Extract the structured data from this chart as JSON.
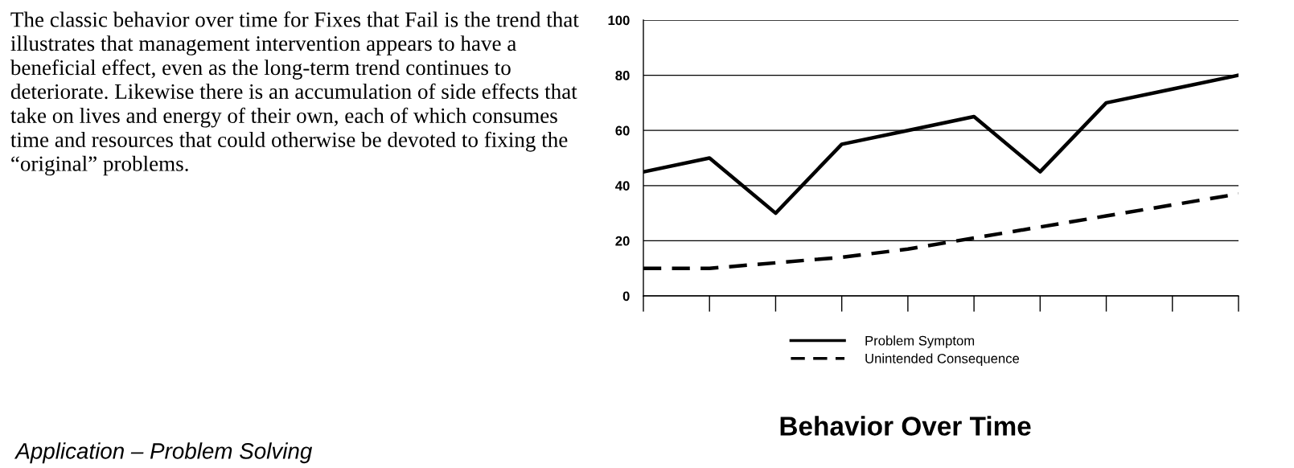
{
  "chart_data": {
    "type": "line",
    "title": "Behavior Over Time",
    "categories": [
      null,
      null,
      null,
      null,
      null,
      null,
      null,
      null,
      null,
      null
    ],
    "series": [
      {
        "name": "Problem Symptom",
        "color": "#000000",
        "line_style": "solid",
        "values": [
          45,
          50,
          30,
          55,
          60,
          65,
          45,
          70,
          75,
          80
        ]
      },
      {
        "name": "Unintended Consequence",
        "color": "#000000",
        "line_style": "dashed",
        "values": [
          10,
          10,
          12,
          14,
          17,
          21,
          25,
          29,
          33,
          37
        ]
      }
    ],
    "ylim": [
      0,
      100
    ],
    "yticks": [
      0,
      20,
      40,
      60,
      80,
      100
    ],
    "grid": "y",
    "legend": "bottom",
    "marker": "none",
    "annotations": [
      "The classic behavior over time for Fixes that Fail is the trend that illustrates that management intervention appears to have a beneficial effect, even as the long-term trend continues to deteriorate. Likewise there is an accumulation of side effects that take on lives and energy of their own, each of which consumes time and resources that could otherwise be devoted to fixing the “original” problems.",
      "Application – Problem Solving"
    ]
  }
}
